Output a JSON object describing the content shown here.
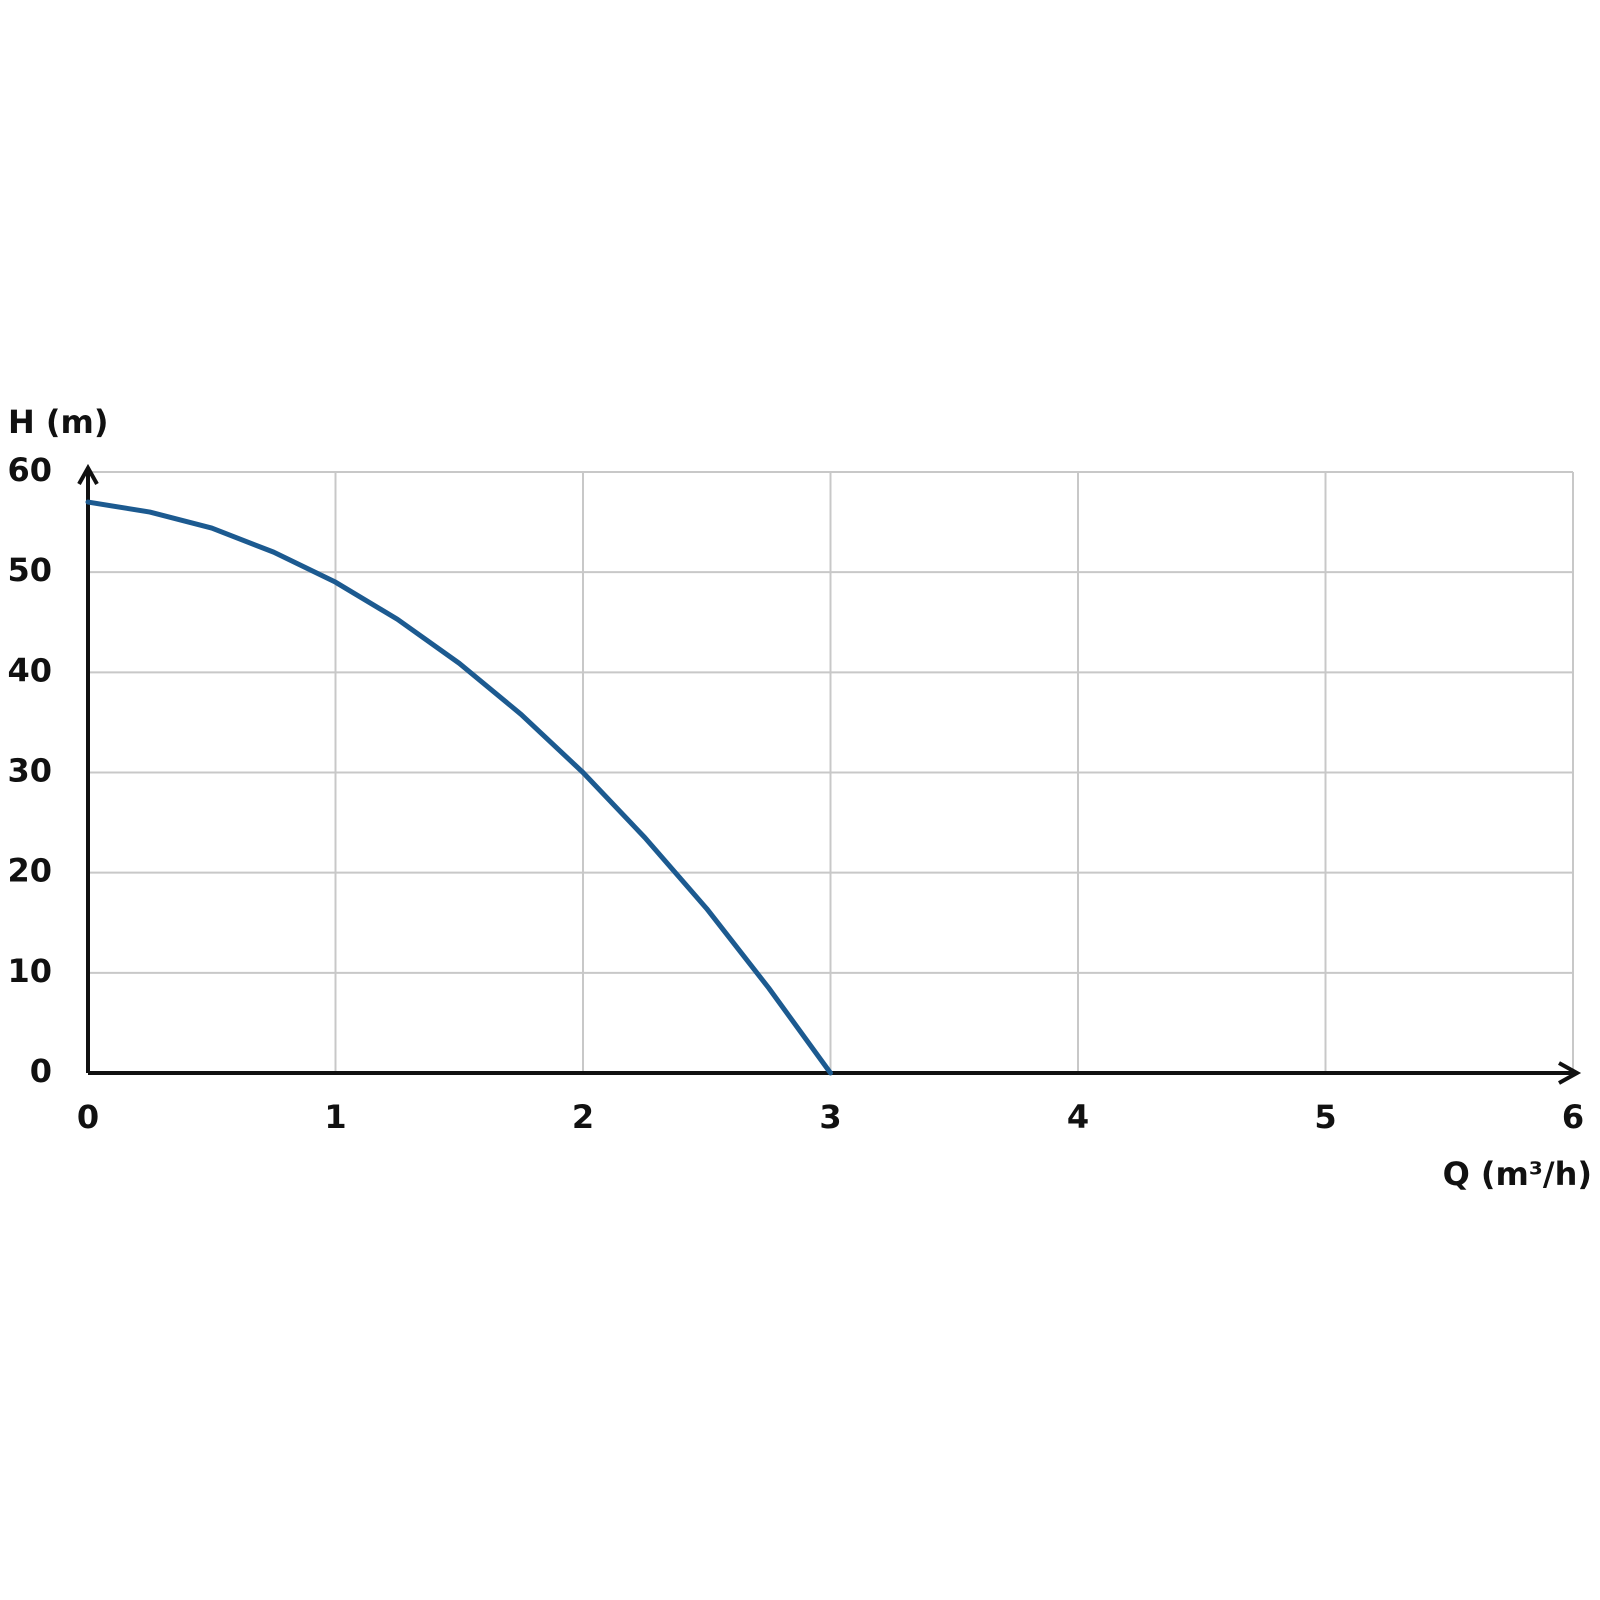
{
  "chart_data": {
    "type": "line",
    "x_label": "Q (m³/h)",
    "y_label": "H (m)",
    "x": [
      0,
      0.25,
      0.5,
      0.75,
      1,
      1.25,
      1.5,
      1.75,
      2,
      2.25,
      2.5,
      2.75,
      3
    ],
    "series": [
      {
        "color": "#1c5a90",
        "values": [
          57,
          56,
          54.4,
          52,
          49,
          45.3,
          40.9,
          35.8,
          30,
          23.5,
          16.4,
          8.5,
          0
        ]
      }
    ],
    "xlim": [
      0,
      6
    ],
    "ylim": [
      0,
      60
    ],
    "xticks": [
      0,
      1,
      2,
      3,
      4,
      5,
      6
    ],
    "yticks": [
      0,
      10,
      20,
      30,
      40,
      50,
      60
    ],
    "grid": true
  }
}
